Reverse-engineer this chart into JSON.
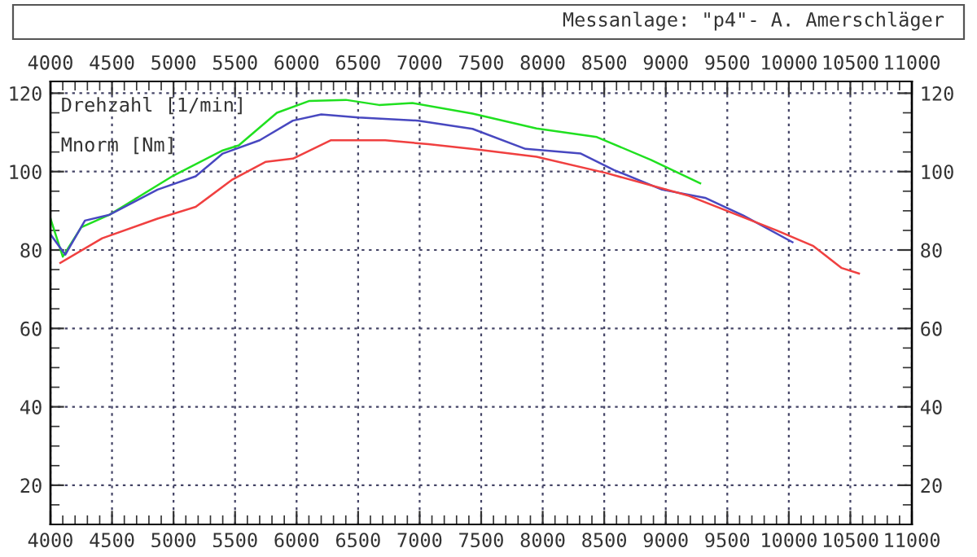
{
  "chart_data": {
    "type": "line",
    "title": "Messanlage: \"p4\"- A. Amerschläger",
    "xlabel": "Drehzahl [1/min]",
    "ylabel": "Mnorm [Nm]",
    "xlim": [
      4000,
      11000
    ],
    "xticks": [
      4000,
      4500,
      5000,
      5500,
      6000,
      6500,
      7000,
      7500,
      8000,
      8500,
      9000,
      9500,
      10000,
      10500,
      11000
    ],
    "ylim": [
      10,
      123
    ],
    "yticks": [
      20,
      40,
      60,
      80,
      100,
      120
    ],
    "x2lim": [
      4000,
      11000
    ],
    "x2ticks": [
      4000,
      4500,
      5000,
      5500,
      6000,
      6500,
      7000,
      7500,
      8000,
      8500,
      9000,
      9500,
      10000,
      10500,
      11000
    ],
    "y2lim": [
      10,
      123
    ],
    "y2ticks": [
      20,
      40,
      60,
      80,
      100,
      120
    ],
    "grid": true,
    "legend": false,
    "marker": "none",
    "line_style": "solid",
    "series": [
      {
        "color": "#20e020",
        "x": [
          4000,
          4100,
          4250,
          4480,
          5000,
          5400,
          5530,
          5840,
          6100,
          6400,
          6670,
          6940,
          7430,
          7950,
          8440,
          8880,
          9280
        ],
        "values": [
          88,
          78.3,
          85.8,
          89,
          99,
          105.4,
          106.7,
          115,
          118,
          118.3,
          117,
          117.5,
          114.8,
          111,
          108.8,
          103,
          97
        ]
      },
      {
        "color": "#4848c0",
        "x": [
          4000,
          4120,
          4280,
          4480,
          4870,
          5180,
          5400,
          5700,
          5970,
          6200,
          6500,
          6990,
          7430,
          7860,
          8310,
          8580,
          8970,
          9320,
          9630,
          10030
        ],
        "values": [
          84,
          78.8,
          87.5,
          89,
          95.4,
          98.8,
          104.6,
          108,
          113,
          114.6,
          113.8,
          113,
          110.9,
          105.8,
          104.6,
          100.4,
          95.4,
          93.3,
          88.8,
          82
        ]
      },
      {
        "color": "#f04040",
        "x": [
          4080,
          4420,
          4870,
          5180,
          5480,
          5750,
          5970,
          6280,
          6720,
          7070,
          7450,
          7950,
          8520,
          9190,
          9900,
          10200,
          10430,
          10570
        ],
        "values": [
          76.7,
          83,
          88,
          91,
          98,
          102.5,
          103.3,
          108,
          108,
          107,
          105.7,
          103.8,
          99.6,
          93.8,
          85,
          81,
          75.4,
          74
        ]
      }
    ]
  }
}
